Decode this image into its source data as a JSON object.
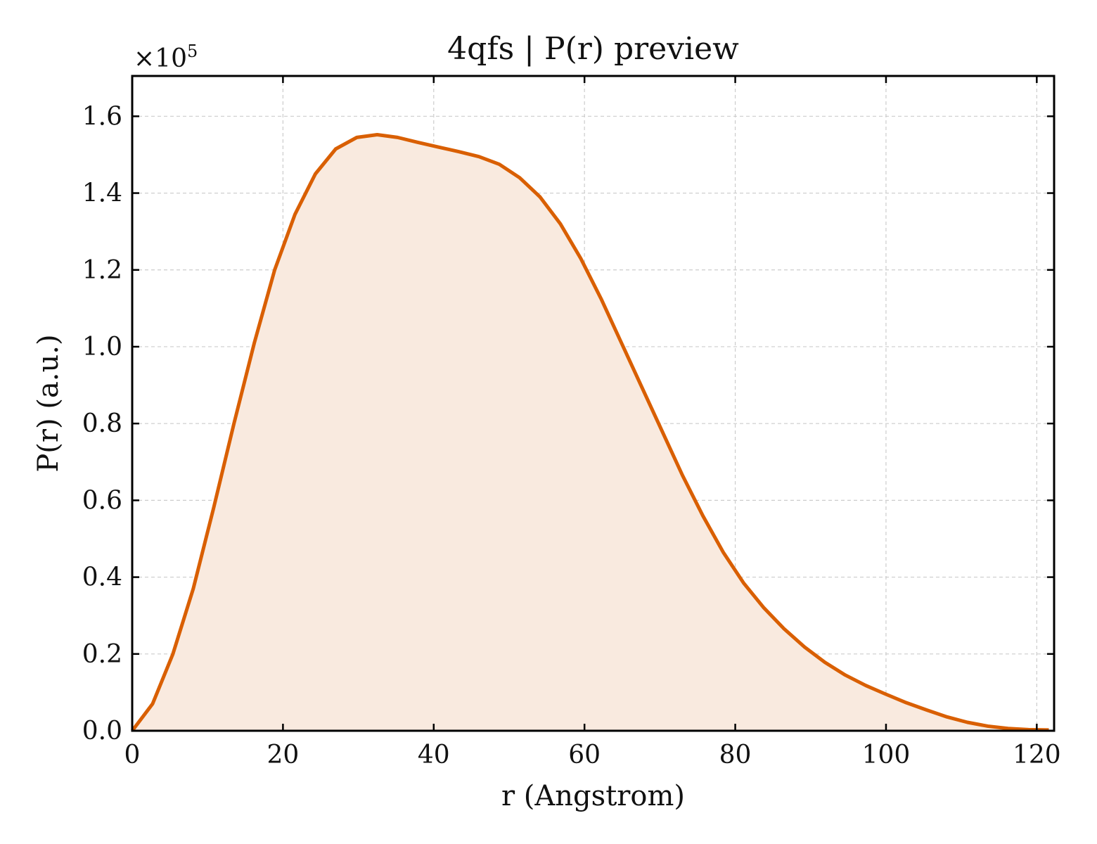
{
  "chart_data": {
    "type": "area",
    "title": "4qfs | P(r) preview",
    "xlabel": "r (Angstrom)",
    "ylabel": "P(r) (a.u.)",
    "y_multiplier_base": "×10",
    "y_multiplier_exp": "5",
    "xlim": [
      0,
      122.3
    ],
    "ylim": [
      0,
      1.705
    ],
    "xticks": [
      0,
      20,
      40,
      60,
      80,
      100,
      120
    ],
    "xtick_labels": [
      "0",
      "20",
      "40",
      "60",
      "80",
      "100",
      "120"
    ],
    "yticks": [
      0,
      0.2,
      0.4,
      0.6,
      0.8,
      1.0,
      1.2,
      1.4,
      1.6
    ],
    "ytick_labels": [
      "0.0",
      "0.2",
      "0.4",
      "0.6",
      "0.8",
      "1.0",
      "1.2",
      "1.4",
      "1.6"
    ],
    "grid": true,
    "line_color": "#d95f02",
    "fill_color": "#f9eadf",
    "series": [
      {
        "x": [
          0,
          2.7,
          5.4,
          8.1,
          10.8,
          13.5,
          16.2,
          18.9,
          21.6,
          24.3,
          27.0,
          29.8,
          32.5,
          35.2,
          37.9,
          40.6,
          43.3,
          46.0,
          48.7,
          51.4,
          54.1,
          56.8,
          59.5,
          62.2,
          64.9,
          67.6,
          70.3,
          73.0,
          75.7,
          78.4,
          81.1,
          83.8,
          86.5,
          89.2,
          91.9,
          94.6,
          97.3,
          100.0,
          102.7,
          105.4,
          108.1,
          110.8,
          113.5,
          116.2,
          118.9,
          121.6
        ],
        "y": [
          0.0,
          0.07,
          0.2,
          0.37,
          0.58,
          0.8,
          1.01,
          1.2,
          1.345,
          1.45,
          1.515,
          1.545,
          1.552,
          1.545,
          1.532,
          1.52,
          1.508,
          1.495,
          1.475,
          1.44,
          1.39,
          1.32,
          1.23,
          1.125,
          1.01,
          0.895,
          0.78,
          0.665,
          0.56,
          0.465,
          0.385,
          0.32,
          0.265,
          0.218,
          0.178,
          0.145,
          0.118,
          0.095,
          0.073,
          0.054,
          0.036,
          0.022,
          0.012,
          0.006,
          0.003,
          0.002
        ]
      }
    ]
  }
}
